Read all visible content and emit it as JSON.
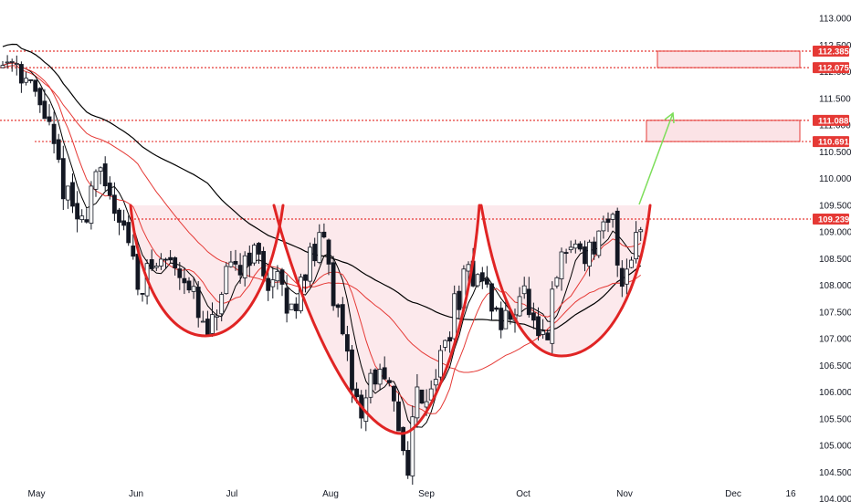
{
  "colors": {
    "background": "#ffffff",
    "bull": "#ffffff",
    "bear": "#131722",
    "wick": "#131722",
    "ma_black": "#000000",
    "ma_red": "#e53935",
    "level": "#e53935",
    "zone_fill": "#fbe3e6",
    "cup_stroke": "#e02424",
    "arrow": "#7dde5a"
  },
  "icons": [
    "green-target-arrow"
  ],
  "chart_data": {
    "type": "candlestick",
    "x_ticks": [
      "May",
      "Jun",
      "Jul",
      "Aug",
      "Sep",
      "Oct",
      "Nov",
      "Dec",
      "16"
    ],
    "y_ticks": [
      "104.000",
      "104.500",
      "105.000",
      "105.500",
      "106.000",
      "106.500",
      "107.000",
      "107.500",
      "108.000",
      "108.500",
      "109.000",
      "109.500",
      "110.000",
      "110.500",
      "111.000",
      "111.500",
      "112.000",
      "112.500",
      "113.000"
    ],
    "ylim": [
      104.0,
      113.0
    ],
    "levels": [
      {
        "label": "112.385",
        "value": 112.385
      },
      {
        "label": "112.075",
        "value": 112.075
      },
      {
        "label": "111.088",
        "value": 111.088
      },
      {
        "label": "110.691",
        "value": 110.691
      },
      {
        "label": "109.239",
        "value": 109.239
      }
    ],
    "target_zones": [
      {
        "from": 112.075,
        "to": 112.385
      },
      {
        "from": 110.691,
        "to": 111.088
      }
    ],
    "pattern": "three rounded bottoms (cups) below the 109.239 resistance with a projected breakout toward the 110.691–111.088 zone",
    "key_points": [
      {
        "x": "May",
        "y": 112.3
      },
      {
        "x": "Jun",
        "y": 108.0
      },
      {
        "x": "late Jun",
        "y": 106.8
      },
      {
        "x": "late Aug",
        "y": 104.6
      },
      {
        "x": "early Oct",
        "y": 106.6
      },
      {
        "x": "Nov",
        "y": 109.2
      }
    ]
  }
}
